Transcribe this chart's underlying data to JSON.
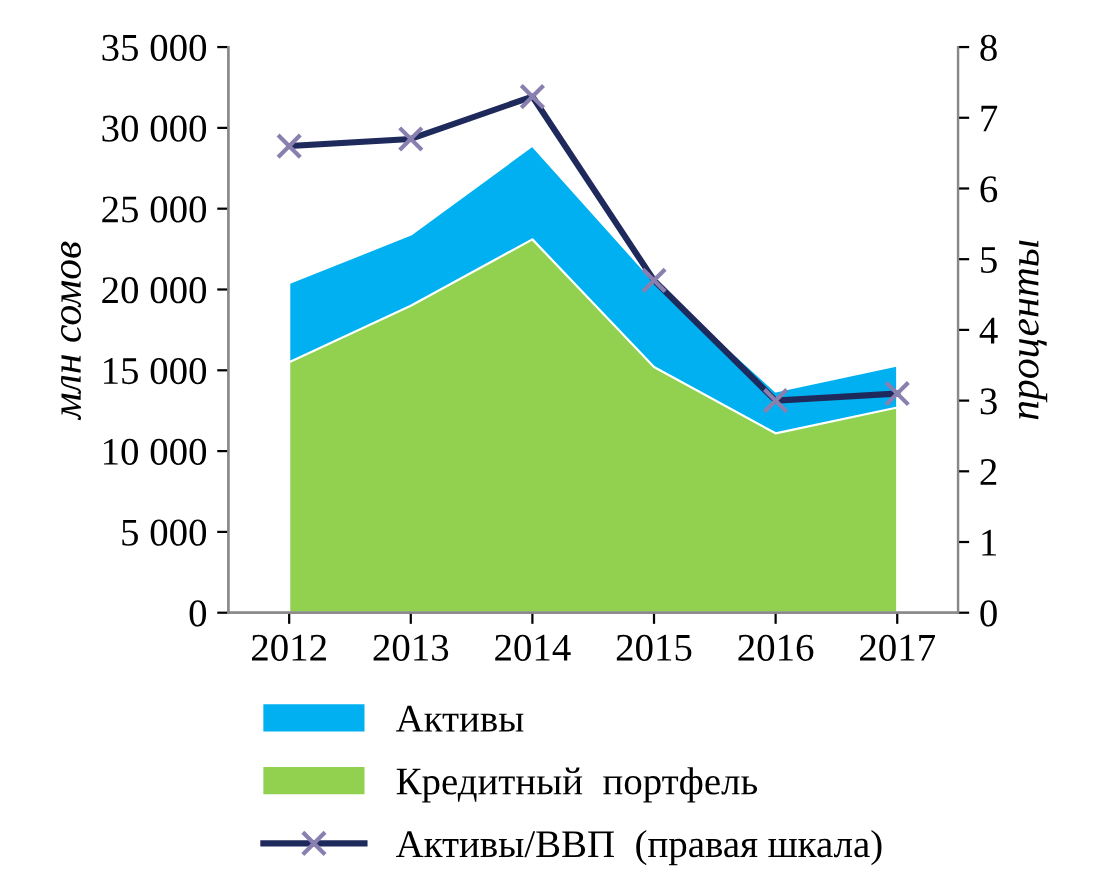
{
  "chart_data": {
    "type": "area",
    "ylabel": "млн сомов",
    "y2label": "проценты",
    "categories": [
      "2012",
      "2013",
      "2014",
      "2015",
      "2016",
      "2017"
    ],
    "series": [
      {
        "name": "Активы",
        "color": "#00b0f0",
        "values": [
          20400,
          23400,
          28900,
          20500,
          13700,
          15300
        ]
      },
      {
        "name": "Кредитный  портфель",
        "color": "#92d050",
        "values": [
          15500,
          19000,
          23100,
          15200,
          11100,
          12700
        ]
      },
      {
        "name": "Активы/ВВП  (правая шкала)",
        "type": "line",
        "axis": "y2",
        "color": "#1f2a5c",
        "marker": "cross",
        "values": [
          6.6,
          6.7,
          7.3,
          4.7,
          3.0,
          3.1
        ]
      }
    ],
    "ylim": [
      0,
      35000
    ],
    "yticks": [
      0,
      {
        "value": 5000,
        "label": "5 000"
      },
      {
        "value": 10000,
        "label": "10 000"
      },
      {
        "value": 15000,
        "label": "15 000"
      },
      {
        "value": 20000,
        "label": "20 000"
      },
      {
        "value": 25000,
        "label": "25 000"
      },
      {
        "value": 30000,
        "label": "30 000"
      },
      {
        "value": 35000,
        "label": "35 000"
      }
    ],
    "y2lim": [
      0,
      8
    ],
    "y2ticks": [
      0,
      1,
      2,
      3,
      4,
      5,
      6,
      7,
      8
    ],
    "legend": "bottom",
    "grid": false
  }
}
